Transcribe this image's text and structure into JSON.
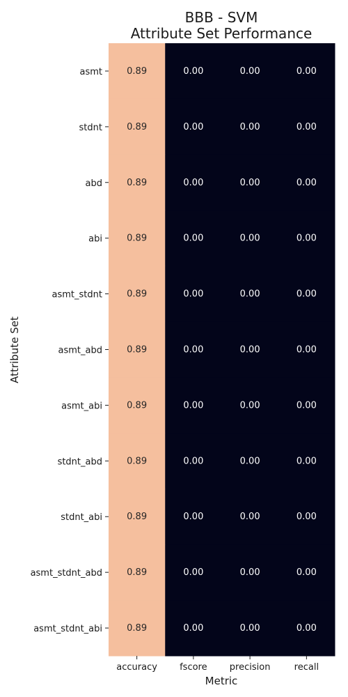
{
  "chart_data": {
    "type": "heatmap",
    "title": [
      "BBB - SVM",
      "Attribute Set Performance"
    ],
    "xlabel": "Metric",
    "ylabel": "Attribute Set",
    "columns": [
      "accuracy",
      "fscore",
      "precision",
      "recall"
    ],
    "rows": [
      "asmt",
      "stdnt",
      "abd",
      "abi",
      "asmt_stdnt",
      "asmt_abd",
      "asmt_abi",
      "stdnt_abd",
      "stdnt_abi",
      "asmt_stdnt_abd",
      "asmt_stdnt_abi"
    ],
    "values": [
      [
        0.89,
        0.0,
        0.0,
        0.0
      ],
      [
        0.89,
        0.0,
        0.0,
        0.0
      ],
      [
        0.89,
        0.0,
        0.0,
        0.0
      ],
      [
        0.89,
        0.0,
        0.0,
        0.0
      ],
      [
        0.89,
        0.0,
        0.0,
        0.0
      ],
      [
        0.89,
        0.0,
        0.0,
        0.0
      ],
      [
        0.89,
        0.0,
        0.0,
        0.0
      ],
      [
        0.89,
        0.0,
        0.0,
        0.0
      ],
      [
        0.89,
        0.0,
        0.0,
        0.0
      ],
      [
        0.89,
        0.0,
        0.0,
        0.0
      ],
      [
        0.89,
        0.0,
        0.0,
        0.0
      ]
    ],
    "value_format": "0.00",
    "colors": {
      "high": "#f5bf9e",
      "low": "#03051a",
      "text_on_high": "#262626",
      "text_on_low": "#ffffff"
    }
  }
}
